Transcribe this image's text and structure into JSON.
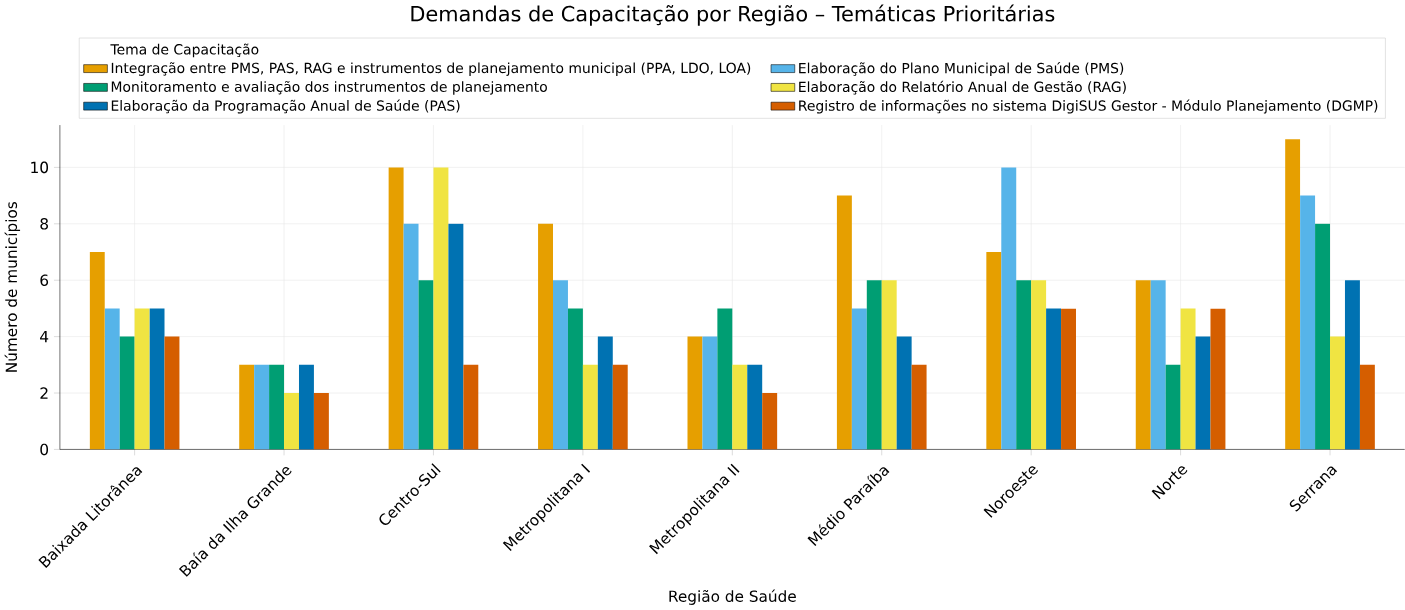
{
  "chart_data": {
    "type": "bar",
    "title": "Demandas de Capacitação por Região – Temáticas Prioritárias",
    "xlabel": "Região de Saúde",
    "ylabel": "Número de municípios",
    "legend_title": "Tema de Capacitação",
    "categories": [
      "Baixada Litorânea",
      "Baía da Ilha Grande",
      "Centro-Sul",
      "Metropolitana I",
      "Metropolitana II",
      "Médio Paraíba",
      "Noroeste",
      "Norte",
      "Serrana"
    ],
    "series": [
      {
        "name": "Integração entre PMS, PAS, RAG e instrumentos de planejamento municipal (PPA, LDO, LOA)",
        "color": "#e69f00",
        "values": [
          7,
          3,
          10,
          8,
          4,
          9,
          7,
          6,
          11
        ]
      },
      {
        "name": "Elaboração do Plano Municipal de Saúde (PMS)",
        "color": "#56b4e9",
        "values": [
          5,
          3,
          8,
          6,
          4,
          5,
          10,
          6,
          9
        ]
      },
      {
        "name": "Monitoramento e avaliação dos instrumentos de planejamento",
        "color": "#009e73",
        "values": [
          4,
          3,
          6,
          5,
          5,
          6,
          6,
          3,
          8
        ]
      },
      {
        "name": "Elaboração do Relatório Anual de Gestão (RAG)",
        "color": "#f0e442",
        "values": [
          5,
          2,
          10,
          3,
          3,
          6,
          6,
          5,
          4
        ]
      },
      {
        "name": "Elaboração da Programação Anual de Saúde (PAS)",
        "color": "#0072b2",
        "values": [
          5,
          3,
          8,
          4,
          3,
          4,
          5,
          4,
          6
        ]
      },
      {
        "name": "Registro de informações no sistema DigiSUS Gestor - Módulo Planejamento (DGMP)",
        "color": "#d55e00",
        "values": [
          4,
          2,
          3,
          3,
          2,
          3,
          5,
          5,
          3
        ]
      }
    ],
    "ylim": [
      0,
      11.5
    ],
    "yticks": [
      0,
      2,
      4,
      6,
      8,
      10
    ],
    "grid": true,
    "legend": "top"
  }
}
